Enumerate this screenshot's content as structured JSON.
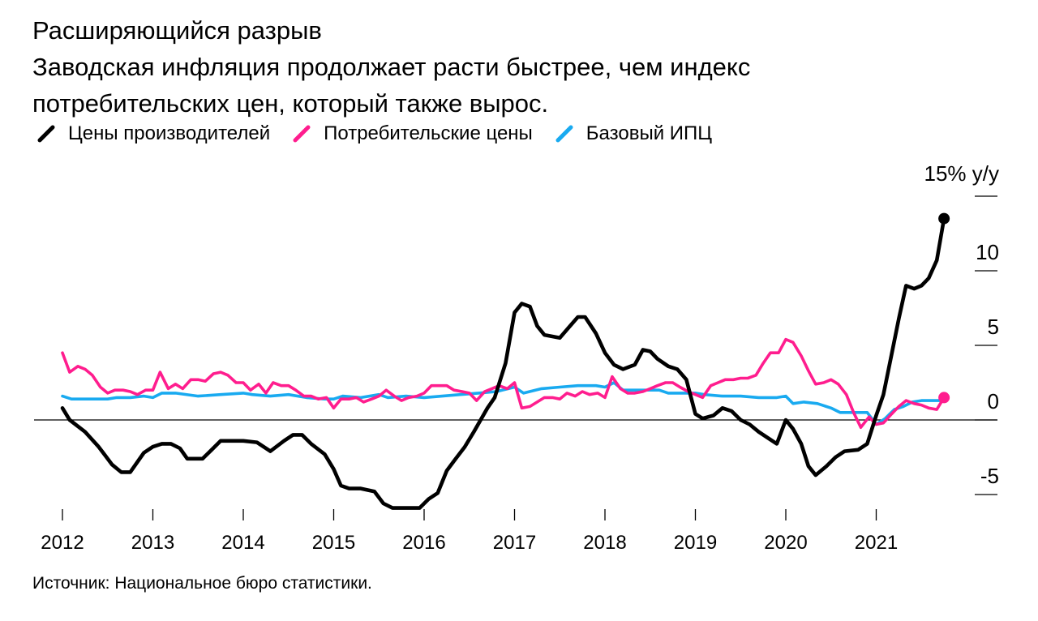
{
  "header": {
    "title": "Расширяющийся разрыв",
    "subtitle": "Заводская инфляция продолжает расти быстрее, чем индекс потребительских цен, который также вырос."
  },
  "source": "Источник: Национальное бюро статистики.",
  "chart_data": {
    "type": "line",
    "title": "Расширяющийся разрыв",
    "subtitle": "Заводская инфляция продолжает расти быстрее, чем индекс потребительских цен, который также вырос.",
    "unit_label": "15% y/y",
    "xlim": [
      2012,
      2021.9
    ],
    "ylim": [
      -6.5,
      15
    ],
    "x_ticks": [
      2012,
      2013,
      2014,
      2015,
      2016,
      2017,
      2018,
      2019,
      2020,
      2021
    ],
    "x_tick_labels": [
      "2012",
      "2013",
      "2014",
      "2015",
      "2016",
      "2017",
      "2018",
      "2019",
      "2020",
      "2021"
    ],
    "y_ticks": [
      15,
      10,
      5,
      0,
      -5
    ],
    "y_tick_labels": [
      "",
      "10",
      "5",
      "0",
      "-5"
    ],
    "zero_line": 0,
    "legend_position": "top-left",
    "grid": false,
    "series": [
      {
        "name": "Цены производителей",
        "color": "#000000",
        "end_marker": true,
        "points": [
          [
            2012.0,
            0.8
          ],
          [
            2012.08,
            0
          ],
          [
            2012.25,
            -0.8
          ],
          [
            2012.4,
            -1.8
          ],
          [
            2012.55,
            -3
          ],
          [
            2012.65,
            -3.5
          ],
          [
            2012.75,
            -3.5
          ],
          [
            2012.9,
            -2.2
          ],
          [
            2013.0,
            -1.8
          ],
          [
            2013.1,
            -1.6
          ],
          [
            2013.2,
            -1.6
          ],
          [
            2013.3,
            -1.9
          ],
          [
            2013.38,
            -2.6
          ],
          [
            2013.45,
            -2.6
          ],
          [
            2013.55,
            -2.6
          ],
          [
            2013.65,
            -2.0
          ],
          [
            2013.75,
            -1.4
          ],
          [
            2013.85,
            -1.4
          ],
          [
            2014.0,
            -1.4
          ],
          [
            2014.15,
            -1.5
          ],
          [
            2014.3,
            -2.1
          ],
          [
            2014.45,
            -1.4
          ],
          [
            2014.55,
            -1.0
          ],
          [
            2014.65,
            -1.0
          ],
          [
            2014.75,
            -1.6
          ],
          [
            2014.9,
            -2.3
          ],
          [
            2015.0,
            -3.3
          ],
          [
            2015.08,
            -4.4
          ],
          [
            2015.17,
            -4.6
          ],
          [
            2015.3,
            -4.6
          ],
          [
            2015.45,
            -4.8
          ],
          [
            2015.55,
            -5.6
          ],
          [
            2015.65,
            -5.9
          ],
          [
            2015.8,
            -5.9
          ],
          [
            2015.95,
            -5.9
          ],
          [
            2016.05,
            -5.3
          ],
          [
            2016.15,
            -4.9
          ],
          [
            2016.25,
            -3.4
          ],
          [
            2016.35,
            -2.6
          ],
          [
            2016.45,
            -1.8
          ],
          [
            2016.55,
            -0.8
          ],
          [
            2016.7,
            0.8
          ],
          [
            2016.78,
            1.5
          ],
          [
            2016.9,
            3.8
          ],
          [
            2017.0,
            7.2
          ],
          [
            2017.08,
            7.8
          ],
          [
            2017.17,
            7.6
          ],
          [
            2017.25,
            6.3
          ],
          [
            2017.33,
            5.7
          ],
          [
            2017.5,
            5.5
          ],
          [
            2017.6,
            6.2
          ],
          [
            2017.7,
            6.9
          ],
          [
            2017.78,
            6.9
          ],
          [
            2017.9,
            5.8
          ],
          [
            2018.0,
            4.5
          ],
          [
            2018.1,
            3.7
          ],
          [
            2018.2,
            3.4
          ],
          [
            2018.33,
            3.7
          ],
          [
            2018.42,
            4.7
          ],
          [
            2018.5,
            4.6
          ],
          [
            2018.58,
            4.1
          ],
          [
            2018.7,
            3.6
          ],
          [
            2018.8,
            3.4
          ],
          [
            2018.9,
            2.7
          ],
          [
            2019.0,
            0.4
          ],
          [
            2019.08,
            0.1
          ],
          [
            2019.2,
            0.3
          ],
          [
            2019.3,
            0.8
          ],
          [
            2019.4,
            0.6
          ],
          [
            2019.5,
            0
          ],
          [
            2019.6,
            -0.3
          ],
          [
            2019.7,
            -0.8
          ],
          [
            2019.8,
            -1.2
          ],
          [
            2019.9,
            -1.6
          ],
          [
            2020.0,
            0
          ],
          [
            2020.08,
            -0.6
          ],
          [
            2020.17,
            -1.6
          ],
          [
            2020.25,
            -3.1
          ],
          [
            2020.33,
            -3.7
          ],
          [
            2020.45,
            -3.1
          ],
          [
            2020.55,
            -2.5
          ],
          [
            2020.65,
            -2.1
          ],
          [
            2020.8,
            -2.0
          ],
          [
            2020.9,
            -1.6
          ],
          [
            2021.0,
            0.3
          ],
          [
            2021.08,
            1.7
          ],
          [
            2021.17,
            4.4
          ],
          [
            2021.25,
            6.8
          ],
          [
            2021.33,
            9.0
          ],
          [
            2021.42,
            8.8
          ],
          [
            2021.5,
            9.0
          ],
          [
            2021.58,
            9.5
          ],
          [
            2021.67,
            10.7
          ],
          [
            2021.75,
            13.5
          ]
        ]
      },
      {
        "name": "Потребительские цены",
        "color": "#ff1d8e",
        "end_marker": true,
        "points": [
          [
            2012.0,
            4.5
          ],
          [
            2012.08,
            3.2
          ],
          [
            2012.17,
            3.6
          ],
          [
            2012.25,
            3.4
          ],
          [
            2012.33,
            3.0
          ],
          [
            2012.42,
            2.2
          ],
          [
            2012.5,
            1.8
          ],
          [
            2012.58,
            2.0
          ],
          [
            2012.67,
            2.0
          ],
          [
            2012.75,
            1.9
          ],
          [
            2012.83,
            1.7
          ],
          [
            2012.92,
            2.0
          ],
          [
            2013.0,
            2.0
          ],
          [
            2013.08,
            3.2
          ],
          [
            2013.17,
            2.1
          ],
          [
            2013.25,
            2.4
          ],
          [
            2013.33,
            2.1
          ],
          [
            2013.42,
            2.7
          ],
          [
            2013.5,
            2.7
          ],
          [
            2013.58,
            2.6
          ],
          [
            2013.67,
            3.1
          ],
          [
            2013.75,
            3.2
          ],
          [
            2013.83,
            3.0
          ],
          [
            2013.92,
            2.5
          ],
          [
            2014.0,
            2.5
          ],
          [
            2014.08,
            2.0
          ],
          [
            2014.17,
            2.4
          ],
          [
            2014.25,
            1.8
          ],
          [
            2014.33,
            2.5
          ],
          [
            2014.42,
            2.3
          ],
          [
            2014.5,
            2.3
          ],
          [
            2014.58,
            2.0
          ],
          [
            2014.67,
            1.6
          ],
          [
            2014.75,
            1.6
          ],
          [
            2014.83,
            1.4
          ],
          [
            2014.92,
            1.5
          ],
          [
            2015.0,
            0.8
          ],
          [
            2015.08,
            1.4
          ],
          [
            2015.17,
            1.4
          ],
          [
            2015.25,
            1.5
          ],
          [
            2015.33,
            1.2
          ],
          [
            2015.42,
            1.4
          ],
          [
            2015.5,
            1.6
          ],
          [
            2015.58,
            2.0
          ],
          [
            2015.67,
            1.6
          ],
          [
            2015.75,
            1.3
          ],
          [
            2015.83,
            1.5
          ],
          [
            2015.92,
            1.6
          ],
          [
            2016.0,
            1.8
          ],
          [
            2016.08,
            2.3
          ],
          [
            2016.17,
            2.3
          ],
          [
            2016.25,
            2.3
          ],
          [
            2016.33,
            2.0
          ],
          [
            2016.42,
            1.9
          ],
          [
            2016.5,
            1.8
          ],
          [
            2016.58,
            1.3
          ],
          [
            2016.67,
            1.9
          ],
          [
            2016.75,
            2.1
          ],
          [
            2016.83,
            2.3
          ],
          [
            2016.92,
            2.1
          ],
          [
            2017.0,
            2.5
          ],
          [
            2017.08,
            0.8
          ],
          [
            2017.17,
            0.9
          ],
          [
            2017.25,
            1.2
          ],
          [
            2017.33,
            1.5
          ],
          [
            2017.42,
            1.5
          ],
          [
            2017.5,
            1.4
          ],
          [
            2017.58,
            1.8
          ],
          [
            2017.67,
            1.6
          ],
          [
            2017.75,
            1.9
          ],
          [
            2017.83,
            1.7
          ],
          [
            2017.92,
            1.8
          ],
          [
            2018.0,
            1.5
          ],
          [
            2018.08,
            2.9
          ],
          [
            2018.17,
            2.1
          ],
          [
            2018.25,
            1.8
          ],
          [
            2018.33,
            1.8
          ],
          [
            2018.42,
            1.9
          ],
          [
            2018.5,
            2.1
          ],
          [
            2018.58,
            2.3
          ],
          [
            2018.67,
            2.5
          ],
          [
            2018.75,
            2.5
          ],
          [
            2018.83,
            2.2
          ],
          [
            2018.92,
            1.9
          ],
          [
            2019.0,
            1.7
          ],
          [
            2019.08,
            1.5
          ],
          [
            2019.17,
            2.3
          ],
          [
            2019.25,
            2.5
          ],
          [
            2019.33,
            2.7
          ],
          [
            2019.42,
            2.7
          ],
          [
            2019.5,
            2.8
          ],
          [
            2019.58,
            2.8
          ],
          [
            2019.67,
            3.0
          ],
          [
            2019.75,
            3.8
          ],
          [
            2019.83,
            4.5
          ],
          [
            2019.92,
            4.5
          ],
          [
            2020.0,
            5.4
          ],
          [
            2020.08,
            5.2
          ],
          [
            2020.17,
            4.3
          ],
          [
            2020.25,
            3.3
          ],
          [
            2020.33,
            2.4
          ],
          [
            2020.42,
            2.5
          ],
          [
            2020.5,
            2.7
          ],
          [
            2020.58,
            2.4
          ],
          [
            2020.67,
            1.7
          ],
          [
            2020.75,
            0.5
          ],
          [
            2020.83,
            -0.5
          ],
          [
            2020.92,
            0.2
          ],
          [
            2021.0,
            -0.3
          ],
          [
            2021.08,
            -0.2
          ],
          [
            2021.17,
            0.4
          ],
          [
            2021.25,
            0.9
          ],
          [
            2021.33,
            1.3
          ],
          [
            2021.42,
            1.1
          ],
          [
            2021.5,
            1.0
          ],
          [
            2021.58,
            0.8
          ],
          [
            2021.67,
            0.7
          ],
          [
            2021.75,
            1.5
          ]
        ]
      },
      {
        "name": "Базовый ИПЦ",
        "color": "#19aaf0",
        "end_marker": false,
        "points": [
          [
            2012.0,
            1.6
          ],
          [
            2012.1,
            1.4
          ],
          [
            2012.5,
            1.4
          ],
          [
            2012.6,
            1.5
          ],
          [
            2012.75,
            1.5
          ],
          [
            2012.9,
            1.6
          ],
          [
            2013.0,
            1.5
          ],
          [
            2013.1,
            1.8
          ],
          [
            2013.25,
            1.8
          ],
          [
            2013.5,
            1.6
          ],
          [
            2013.75,
            1.7
          ],
          [
            2014.0,
            1.8
          ],
          [
            2014.1,
            1.7
          ],
          [
            2014.3,
            1.6
          ],
          [
            2014.5,
            1.7
          ],
          [
            2014.7,
            1.5
          ],
          [
            2014.9,
            1.4
          ],
          [
            2015.0,
            1.4
          ],
          [
            2015.1,
            1.6
          ],
          [
            2015.3,
            1.5
          ],
          [
            2015.5,
            1.7
          ],
          [
            2015.6,
            1.5
          ],
          [
            2015.8,
            1.6
          ],
          [
            2016.0,
            1.5
          ],
          [
            2016.2,
            1.6
          ],
          [
            2016.4,
            1.7
          ],
          [
            2016.6,
            1.8
          ],
          [
            2016.8,
            1.9
          ],
          [
            2017.0,
            2.2
          ],
          [
            2017.1,
            1.8
          ],
          [
            2017.3,
            2.1
          ],
          [
            2017.5,
            2.2
          ],
          [
            2017.7,
            2.3
          ],
          [
            2017.9,
            2.3
          ],
          [
            2018.0,
            2.2
          ],
          [
            2018.1,
            2.5
          ],
          [
            2018.2,
            2.0
          ],
          [
            2018.4,
            2.0
          ],
          [
            2018.6,
            2.0
          ],
          [
            2018.7,
            1.8
          ],
          [
            2018.9,
            1.8
          ],
          [
            2019.0,
            1.8
          ],
          [
            2019.1,
            1.7
          ],
          [
            2019.3,
            1.6
          ],
          [
            2019.5,
            1.6
          ],
          [
            2019.7,
            1.5
          ],
          [
            2019.9,
            1.5
          ],
          [
            2020.0,
            1.6
          ],
          [
            2020.08,
            1.1
          ],
          [
            2020.2,
            1.2
          ],
          [
            2020.35,
            1.1
          ],
          [
            2020.5,
            0.8
          ],
          [
            2020.6,
            0.5
          ],
          [
            2020.8,
            0.5
          ],
          [
            2020.9,
            0.5
          ],
          [
            2021.0,
            -0.3
          ],
          [
            2021.1,
            0.1
          ],
          [
            2021.2,
            0.7
          ],
          [
            2021.3,
            0.9
          ],
          [
            2021.4,
            1.2
          ],
          [
            2021.5,
            1.3
          ],
          [
            2021.6,
            1.3
          ],
          [
            2021.75,
            1.3
          ]
        ]
      }
    ]
  }
}
